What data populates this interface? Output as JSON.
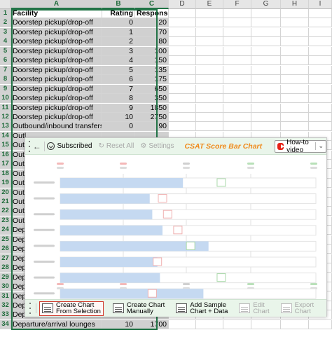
{
  "columns": [
    "A",
    "B",
    "C",
    "D",
    "E",
    "F",
    "G",
    "H",
    "I"
  ],
  "rows": [
    {
      "num": "1",
      "a": "Facility",
      "b": "Rating",
      "c": "Responses",
      "header": true
    },
    {
      "num": "2",
      "a": "Doorstep pickup/drop-off",
      "b": "0",
      "c": "20"
    },
    {
      "num": "3",
      "a": "Doorstep pickup/drop-off",
      "b": "1",
      "c": "70"
    },
    {
      "num": "4",
      "a": "Doorstep pickup/drop-off",
      "b": "2",
      "c": "80"
    },
    {
      "num": "5",
      "a": "Doorstep pickup/drop-off",
      "b": "3",
      "c": "100"
    },
    {
      "num": "6",
      "a": "Doorstep pickup/drop-off",
      "b": "4",
      "c": "150"
    },
    {
      "num": "7",
      "a": "Doorstep pickup/drop-off",
      "b": "5",
      "c": "135"
    },
    {
      "num": "8",
      "a": "Doorstep pickup/drop-off",
      "b": "6",
      "c": "175"
    },
    {
      "num": "9",
      "a": "Doorstep pickup/drop-off",
      "b": "7",
      "c": "650"
    },
    {
      "num": "10",
      "a": "Doorstep pickup/drop-off",
      "b": "8",
      "c": "350"
    },
    {
      "num": "11",
      "a": "Doorstep pickup/drop-off",
      "b": "9",
      "c": "1850"
    },
    {
      "num": "12",
      "a": "Doorstep pickup/drop-off",
      "b": "10",
      "c": "2750"
    },
    {
      "num": "13",
      "a": "Outbound/inbound transfers",
      "b": "0",
      "c": "90"
    },
    {
      "num": "14",
      "a": "Outl",
      "b": "",
      "c": ""
    },
    {
      "num": "15",
      "a": "Outl",
      "b": "",
      "c": ""
    },
    {
      "num": "16",
      "a": "Outl",
      "b": "",
      "c": ""
    },
    {
      "num": "17",
      "a": "Outl",
      "b": "",
      "c": ""
    },
    {
      "num": "18",
      "a": "Outl",
      "b": "",
      "c": ""
    },
    {
      "num": "19",
      "a": "Outl",
      "b": "",
      "c": ""
    },
    {
      "num": "20",
      "a": "Outl",
      "b": "",
      "c": ""
    },
    {
      "num": "21",
      "a": "Outl",
      "b": "",
      "c": ""
    },
    {
      "num": "22",
      "a": "Outl",
      "b": "",
      "c": ""
    },
    {
      "num": "23",
      "a": "Outl",
      "b": "",
      "c": ""
    },
    {
      "num": "24",
      "a": "Dep",
      "b": "",
      "c": ""
    },
    {
      "num": "25",
      "a": "Dep",
      "b": "",
      "c": ""
    },
    {
      "num": "26",
      "a": "Dep",
      "b": "",
      "c": ""
    },
    {
      "num": "27",
      "a": "Dep",
      "b": "",
      "c": ""
    },
    {
      "num": "28",
      "a": "Dep",
      "b": "",
      "c": ""
    },
    {
      "num": "29",
      "a": "Dep",
      "b": "",
      "c": ""
    },
    {
      "num": "30",
      "a": "Dep",
      "b": "",
      "c": ""
    },
    {
      "num": "31",
      "a": "Dep",
      "b": "",
      "c": ""
    },
    {
      "num": "32",
      "a": "Dep",
      "b": "",
      "c": ""
    },
    {
      "num": "33",
      "a": "Dep",
      "b": "",
      "c": ""
    },
    {
      "num": "34",
      "a": "Departure/arrival lounges",
      "b": "10",
      "c": "1700"
    }
  ],
  "panel": {
    "subscribed_label": "Subscribed",
    "reset_label": "Reset All",
    "settings_label": "Settings",
    "title": "CSAT Score Bar Chart",
    "video_label": "How-to video",
    "bottom_buttons": [
      {
        "line1": "Create Chart",
        "line2": "From Selection",
        "active": true,
        "disabled": false
      },
      {
        "line1": "Create Chart",
        "line2": "Manually",
        "active": false,
        "disabled": false
      },
      {
        "line1": "Add Sample",
        "line2": "Chart + Data",
        "active": false,
        "disabled": false
      },
      {
        "line1": "Edit",
        "line2": "Chart",
        "active": false,
        "disabled": true
      },
      {
        "line1": "Export",
        "line2": "Chart",
        "active": false,
        "disabled": true
      }
    ]
  },
  "preview_chart": {
    "bar_fraction": [
      0.48,
      0.35,
      0.36,
      0.4,
      0.58,
      0.38,
      0.39,
      0.56
    ],
    "marker_fraction": [
      0.63,
      0.4,
      0.42,
      0.46,
      0.51,
      0.38,
      0.63,
      0.36
    ],
    "top_dot_colors": [
      "#f4b8b8",
      "#f4b8b8",
      "#cfcfcf",
      "#b8e0b8",
      "#b8e0b8"
    ],
    "bar_color": "#c5d9f1",
    "marker_color_warm": "#f0b0b0",
    "marker_color_cool": "#a8d8a8"
  }
}
